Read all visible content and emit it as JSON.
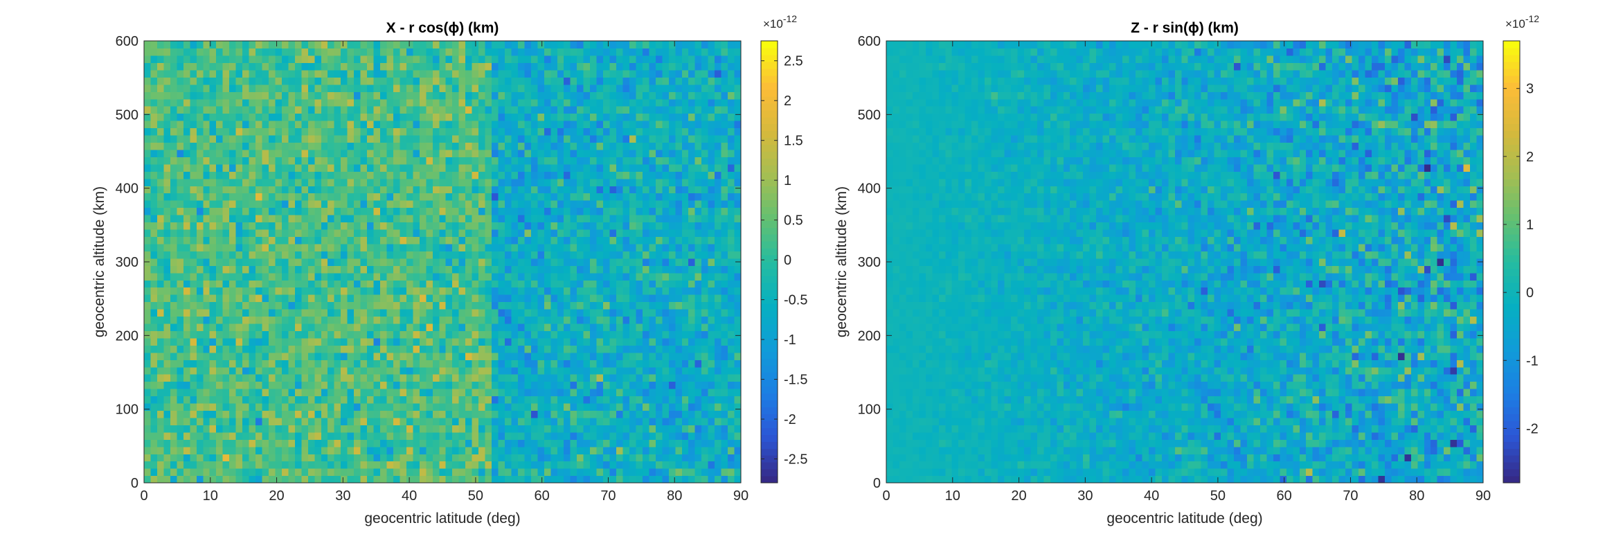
{
  "chart_data": [
    {
      "type": "heatmap",
      "title": "X - r cos(ϕ) (km)",
      "xlabel": "geocentric latitude (deg)",
      "ylabel": "geocentric altitude (km)",
      "xlim": [
        0,
        90
      ],
      "ylim": [
        0,
        600
      ],
      "xticks": [
        0,
        10,
        20,
        30,
        40,
        50,
        60,
        70,
        80,
        90
      ],
      "yticks": [
        0,
        100,
        200,
        300,
        400,
        500,
        600
      ],
      "grid": "off",
      "colormap": "parula",
      "colorbar": {
        "position": "right",
        "exponent_label": "×10",
        "exponent": "-12",
        "clim": [
          -2.8e-12,
          2.75e-12
        ],
        "ticks": [
          -2.5,
          -2,
          -1.5,
          -1,
          -0.5,
          0,
          0.5,
          1,
          1.5,
          2,
          2.5
        ],
        "tick_labels": [
          "-2.5",
          "-2",
          "-1.5",
          "-1",
          "-0.5",
          "0",
          "0.5",
          "1",
          "1.5",
          "2",
          "2.5"
        ]
      },
      "grid_cells": {
        "nx": 91,
        "ny": 61
      },
      "description_of_values": "Cell values are noise of magnitude ~1e-12; mean slightly positive for latitude < ~52 deg and slightly negative (about -0.6e-12) for latitude > ~52 deg."
    },
    {
      "type": "heatmap",
      "title": "Z - r sin(ϕ) (km)",
      "xlabel": "geocentric latitude (deg)",
      "ylabel": "geocentric altitude (km)",
      "xlim": [
        0,
        90
      ],
      "ylim": [
        0,
        600
      ],
      "xticks": [
        0,
        10,
        20,
        30,
        40,
        50,
        60,
        70,
        80,
        90
      ],
      "yticks": [
        0,
        100,
        200,
        300,
        400,
        500,
        600
      ],
      "grid": "off",
      "colormap": "parula",
      "colorbar": {
        "position": "right",
        "exponent_label": "×10",
        "exponent": "-12",
        "clim": [
          -2.8e-12,
          3.7e-12
        ],
        "ticks": [
          -2,
          -1,
          0,
          1,
          2,
          3
        ],
        "tick_labels": [
          "-2",
          "-1",
          "0",
          "1",
          "2",
          "3"
        ]
      },
      "grid_cells": {
        "nx": 91,
        "ny": 61
      },
      "description_of_values": "Values near zero at low latitudes; noise amplitude grows with latitude, reaching roughly ±2.5e-12 near 90 deg."
    }
  ],
  "colors": {
    "parula": [
      "#352a87",
      "#2c57d6",
      "#1c7fe3",
      "#109cd8",
      "#06b0c1",
      "#25bca0",
      "#64c071",
      "#a5be52",
      "#d6b93c",
      "#fcbc38",
      "#f9fb0e"
    ]
  }
}
